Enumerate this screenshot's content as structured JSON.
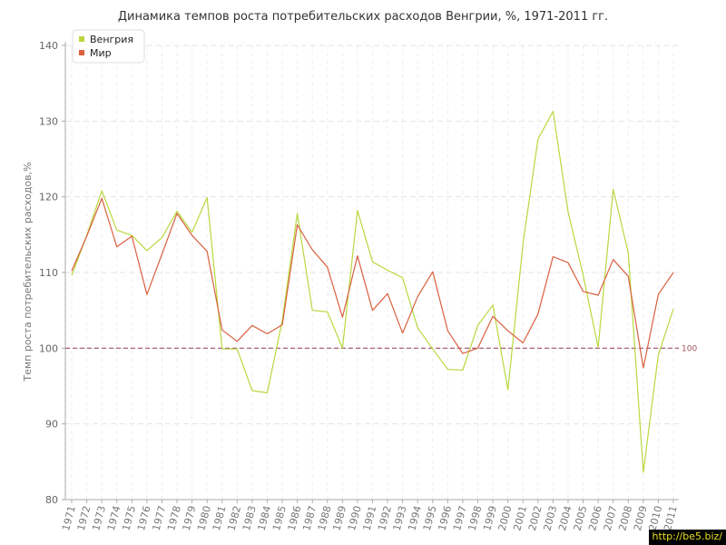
{
  "chart_data": {
    "type": "line",
    "title": "Динамика темпов роста потребительских расходов Венгрии, %, 1971-2011 гг.",
    "xlabel": "",
    "ylabel": "Темп роста потребительских расходов,%",
    "ylim": [
      80,
      140
    ],
    "yticks": [
      80,
      90,
      100,
      110,
      120,
      130,
      140
    ],
    "grid": true,
    "legend_position": "top-left",
    "categories": [
      "1971",
      "1972",
      "1973",
      "1974",
      "1975",
      "1976",
      "1977",
      "1978",
      "1979",
      "1980",
      "1981",
      "1982",
      "1983",
      "1984",
      "1985",
      "1986",
      "1987",
      "1988",
      "1989",
      "1990",
      "1991",
      "1992",
      "1993",
      "1994",
      "1995",
      "1996",
      "1997",
      "1998",
      "1999",
      "2000",
      "2001",
      "2002",
      "2003",
      "2004",
      "2005",
      "2006",
      "2007",
      "2008",
      "2009",
      "2010",
      "2011"
    ],
    "series": [
      {
        "name": "Венгрия",
        "color": "#b9d83e",
        "values": [
          109.6,
          114.9,
          120.8,
          115.6,
          114.9,
          112.9,
          114.6,
          118.1,
          115.3,
          119.9,
          99.9,
          99.9,
          94.4,
          94.1,
          103.7,
          117.8,
          105.0,
          104.8,
          100.0,
          118.2,
          111.4,
          110.3,
          109.3,
          102.7,
          99.9,
          97.2,
          97.1,
          103.0,
          105.7,
          94.5,
          113.8,
          127.6,
          131.3,
          118.0,
          109.7,
          100.1,
          121.0,
          112.6,
          83.6,
          99.1,
          105.2
        ]
      },
      {
        "name": "Мир",
        "color": "#d96040",
        "values": [
          110.2,
          114.8,
          119.8,
          113.4,
          114.8,
          107.1,
          112.4,
          117.8,
          114.9,
          112.8,
          102.4,
          100.9,
          103.0,
          101.9,
          103.1,
          116.3,
          113.0,
          110.7,
          104.1,
          112.2,
          105.0,
          107.2,
          102.0,
          106.8,
          110.1,
          102.3,
          99.3,
          100.0,
          104.2,
          102.3,
          100.7,
          104.5,
          112.1,
          111.3,
          107.5,
          107.0,
          111.7,
          109.5,
          97.4,
          107.1,
          110.0
        ]
      }
    ],
    "reference_line": {
      "value": 100,
      "label": "100",
      "color": "#a05070"
    }
  },
  "watermark": "http://be5.biz/"
}
